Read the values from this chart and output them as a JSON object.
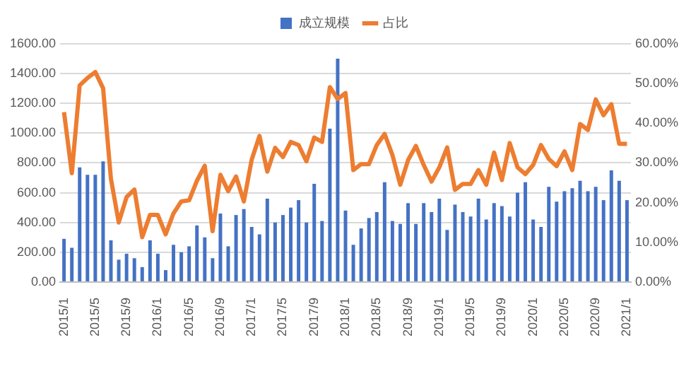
{
  "chart_data": {
    "type": "bar",
    "categories": [
      "2015/1",
      null,
      null,
      null,
      "2015/5",
      null,
      null,
      null,
      "2015/9",
      null,
      null,
      null,
      "2016/1",
      null,
      null,
      null,
      "2016/5",
      null,
      null,
      null,
      "2016/9",
      null,
      null,
      null,
      "2017/1",
      null,
      null,
      null,
      "2017/5",
      null,
      null,
      null,
      "2017/9",
      null,
      null,
      null,
      "2018/1",
      null,
      null,
      null,
      "2018/5",
      null,
      null,
      null,
      "2018/9",
      null,
      null,
      null,
      "2019/1",
      null,
      null,
      null,
      "2019/5",
      null,
      null,
      null,
      "2019/9",
      null,
      null,
      null,
      "2020/1",
      null,
      null,
      null,
      "2020/5",
      null,
      null,
      null,
      "2020/9",
      null,
      null,
      null,
      "2021/1"
    ],
    "series": [
      {
        "name": "成立规模",
        "color": "#4472c4",
        "values": [
          290,
          230,
          770,
          720,
          720,
          810,
          280,
          150,
          190,
          160,
          100,
          280,
          190,
          80,
          250,
          200,
          240,
          380,
          300,
          160,
          460,
          240,
          450,
          490,
          370,
          320,
          560,
          400,
          450,
          500,
          550,
          400,
          660,
          410,
          1030,
          1500,
          480,
          250,
          360,
          430,
          470,
          670,
          410,
          390,
          530,
          390,
          530,
          470,
          560,
          350,
          520,
          470,
          440,
          560,
          420,
          530,
          510,
          440,
          600,
          670,
          420,
          370,
          640,
          540,
          610,
          630,
          680,
          610,
          640,
          550,
          750,
          680,
          550
        ]
      },
      {
        "name": "占比",
        "type": "line",
        "axis": "y2",
        "color": "#ed7d31",
        "values": [
          42.8,
          27.4,
          49.5,
          51.4,
          52.9,
          48.8,
          26,
          15,
          21.4,
          23.3,
          11.3,
          16.9,
          16.9,
          12,
          17.3,
          20.3,
          20.6,
          25.5,
          29.3,
          12.8,
          27,
          22.9,
          26.6,
          20.3,
          30.8,
          36.8,
          27.8,
          33.8,
          31.5,
          35.3,
          34.5,
          30.4,
          36.4,
          35.3,
          49.1,
          46.1,
          47.6,
          28.2,
          29.7,
          29.7,
          34.5,
          37.3,
          32,
          24.5,
          30.7,
          34.3,
          29.5,
          25.3,
          28.9,
          33.9,
          23.2,
          24.7,
          24.7,
          28.2,
          24.5,
          32.6,
          25.7,
          35,
          28.9,
          27.2,
          29.5,
          34.5,
          31,
          29.2,
          32.9,
          28.2,
          39.8,
          38.3,
          46,
          42,
          44.8,
          34.8,
          34.8
        ]
      }
    ],
    "ylim": [
      0,
      1600
    ],
    "yticks": [
      {
        "value": 0,
        "label": "0.00"
      },
      {
        "value": 200,
        "label": "200.00"
      },
      {
        "value": 400,
        "label": "400.00"
      },
      {
        "value": 600,
        "label": "600.00"
      },
      {
        "value": 800,
        "label": "800.00"
      },
      {
        "value": 1000,
        "label": "1000.00"
      },
      {
        "value": 1200,
        "label": "1200.00"
      },
      {
        "value": 1400,
        "label": "1400.00"
      },
      {
        "value": 1600,
        "label": "1600.00"
      }
    ],
    "y2lim": [
      0,
      60
    ],
    "y2ticks": [
      {
        "value": 0,
        "label": "0.00%"
      },
      {
        "value": 10,
        "label": "10.00%"
      },
      {
        "value": 20,
        "label": "20.00%"
      },
      {
        "value": 30,
        "label": "30.00%"
      },
      {
        "value": 40,
        "label": "40.00%"
      },
      {
        "value": 50,
        "label": "50.00%"
      },
      {
        "value": 60,
        "label": "60.00%"
      }
    ],
    "grid": "y",
    "legend": "top",
    "marker": "none",
    "line_style": "solid"
  }
}
